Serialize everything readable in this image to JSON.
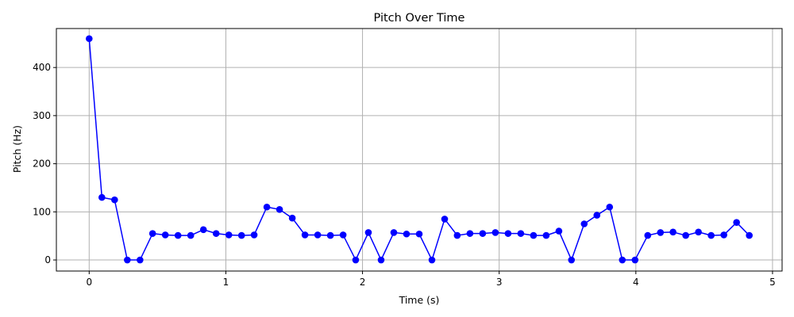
{
  "chart_data": {
    "type": "line",
    "title": "Pitch Over Time",
    "xlabel": "Time (s)",
    "ylabel": "Pitch (Hz)",
    "xlim": [
      -0.24,
      5.07
    ],
    "ylim": [
      -23,
      481
    ],
    "xticks": [
      0,
      1,
      2,
      3,
      4,
      5
    ],
    "yticks": [
      0,
      100,
      200,
      300,
      400
    ],
    "grid": true,
    "series": [
      {
        "color": "#0000ff",
        "marker": "circle",
        "x": [
          0.0,
          0.093,
          0.186,
          0.279,
          0.372,
          0.464,
          0.557,
          0.65,
          0.743,
          0.836,
          0.929,
          1.022,
          1.115,
          1.207,
          1.3,
          1.393,
          1.486,
          1.579,
          1.672,
          1.765,
          1.858,
          1.95,
          2.043,
          2.136,
          2.229,
          2.322,
          2.415,
          2.508,
          2.601,
          2.693,
          2.786,
          2.879,
          2.972,
          3.065,
          3.158,
          3.251,
          3.344,
          3.437,
          3.529,
          3.622,
          3.715,
          3.808,
          3.901,
          3.994,
          4.087,
          4.18,
          4.272,
          4.365,
          4.458,
          4.551,
          4.644,
          4.737,
          4.83
        ],
        "y": [
          460,
          130,
          125,
          0,
          0,
          55,
          52,
          51,
          51,
          63,
          55,
          52,
          51,
          52,
          110,
          105,
          87,
          52,
          52,
          51,
          52,
          0,
          57,
          0,
          57,
          54,
          54,
          0,
          85,
          51,
          55,
          55,
          57,
          55,
          55,
          51,
          51,
          60,
          0,
          75,
          93,
          110,
          0,
          0,
          51,
          57,
          58,
          51,
          58,
          51,
          52,
          78,
          51
        ]
      }
    ]
  }
}
